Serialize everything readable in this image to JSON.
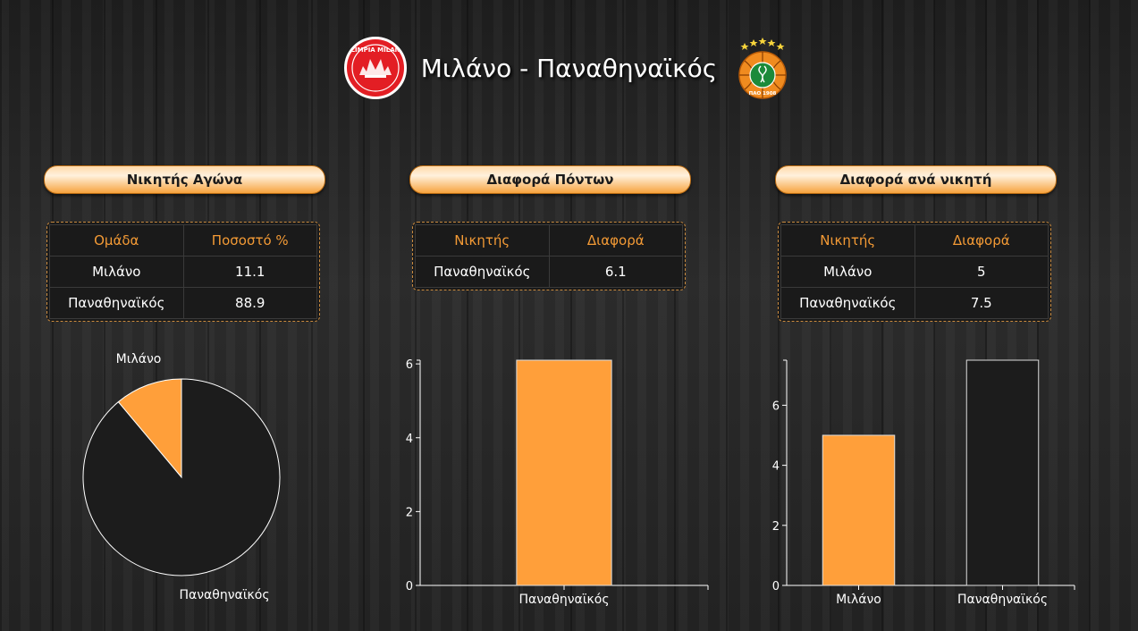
{
  "header": {
    "title": "Μιλάνο - Παναθηναϊκός",
    "home_logo": "olimpia-milano-logo",
    "away_logo": "panathinaikos-logo",
    "home_logo_text": "OLIMPIA MILANO",
    "away_logo_text": "ΠΑΟ 1908"
  },
  "colors": {
    "accent": "#f39a35",
    "bar_orange": "#ff9f3a",
    "bar_dark": "#1c1c1c",
    "panel": "#1a1a1a"
  },
  "sections": [
    {
      "title": "Νικητής Αγώνα",
      "table": {
        "headers": [
          "Ομάδα",
          "Ποσοστό %"
        ],
        "rows": [
          [
            "Μιλάνο",
            "11.1"
          ],
          [
            "Παναθηναϊκός",
            "88.9"
          ]
        ]
      }
    },
    {
      "title": "Διαφορά Πόντων",
      "table": {
        "headers": [
          "Νικητής",
          "Διαφορά"
        ],
        "rows": [
          [
            "Παναθηναϊκός",
            "6.1"
          ]
        ]
      }
    },
    {
      "title": "Διαφορά ανά νικητή",
      "table": {
        "headers": [
          "Νικητής",
          "Διαφορά"
        ],
        "rows": [
          [
            "Μιλάνο",
            "5"
          ],
          [
            "Παναθηναϊκός",
            "7.5"
          ]
        ]
      }
    }
  ],
  "chart_data": [
    {
      "type": "pie",
      "labels": [
        "Μιλάνο",
        "Παναθηναϊκός"
      ],
      "values": [
        11.1,
        88.9
      ],
      "colors": [
        "#ff9f3a",
        "#1c1c1c"
      ]
    },
    {
      "type": "bar",
      "categories": [
        "Παναθηναϊκός"
      ],
      "values": [
        6.1
      ],
      "ylim": [
        0,
        6.1
      ],
      "yticks": [
        0,
        2,
        4,
        6
      ],
      "colors": [
        "#ff9f3a"
      ]
    },
    {
      "type": "bar",
      "categories": [
        "Μιλάνο",
        "Παναθηναϊκός"
      ],
      "values": [
        5,
        7.5
      ],
      "ylim": [
        0,
        7.5
      ],
      "yticks": [
        0,
        2,
        4,
        6
      ],
      "colors": [
        "#ff9f3a",
        "#1c1c1c"
      ]
    }
  ]
}
